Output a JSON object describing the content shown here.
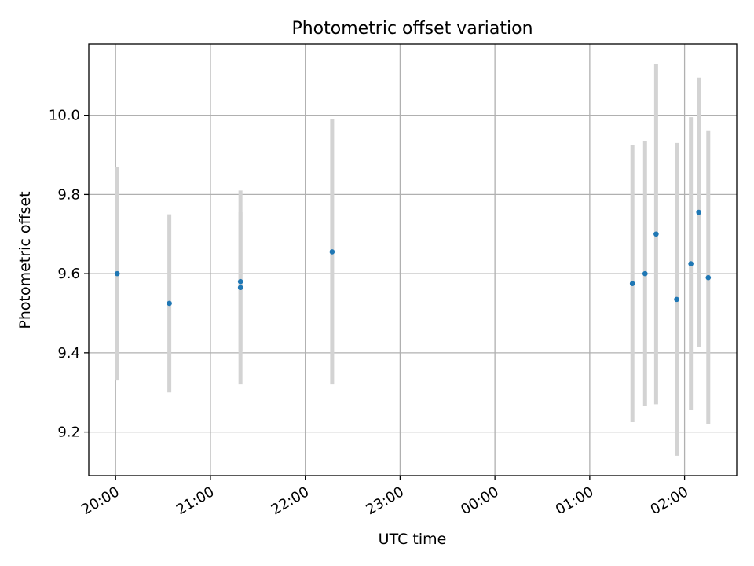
{
  "chart_data": {
    "type": "scatter",
    "title": "Photometric offset variation",
    "xlabel": "UTC time",
    "ylabel": "Photometric offset",
    "x_ticks": [
      "20:00",
      "21:00",
      "22:00",
      "23:00",
      "00:00",
      "01:00",
      "02:00"
    ],
    "y_ticks": [
      "9.2",
      "9.4",
      "9.6",
      "9.8",
      "10.0"
    ],
    "xlim": [
      "19:43",
      "02:33"
    ],
    "ylim": [
      9.09,
      10.18
    ],
    "grid": true,
    "series": [
      {
        "marker_color": "#1f77b4",
        "errorbar_color": "#d3d3d3",
        "points": [
          {
            "x": "20:01",
            "y": 9.6,
            "yerr": 0.27
          },
          {
            "x": "20:34",
            "y": 9.525,
            "yerr": 0.225
          },
          {
            "x": "21:19",
            "y": 9.565,
            "yerr": 0.245
          },
          {
            "x": "21:19",
            "y": 9.58,
            "yerr": 0.175
          },
          {
            "x": "22:17",
            "y": 9.655,
            "yerr": 0.335
          },
          {
            "x": "01:27",
            "y": 9.575,
            "yerr": 0.35
          },
          {
            "x": "01:35",
            "y": 9.6,
            "yerr": 0.335
          },
          {
            "x": "01:42",
            "y": 9.7,
            "yerr": 0.43
          },
          {
            "x": "01:55",
            "y": 9.535,
            "yerr": 0.395
          },
          {
            "x": "02:04",
            "y": 9.625,
            "yerr": 0.37
          },
          {
            "x": "02:09",
            "y": 9.755,
            "yerr": 0.34
          },
          {
            "x": "02:15",
            "y": 9.59,
            "yerr": 0.37
          }
        ]
      }
    ]
  }
}
